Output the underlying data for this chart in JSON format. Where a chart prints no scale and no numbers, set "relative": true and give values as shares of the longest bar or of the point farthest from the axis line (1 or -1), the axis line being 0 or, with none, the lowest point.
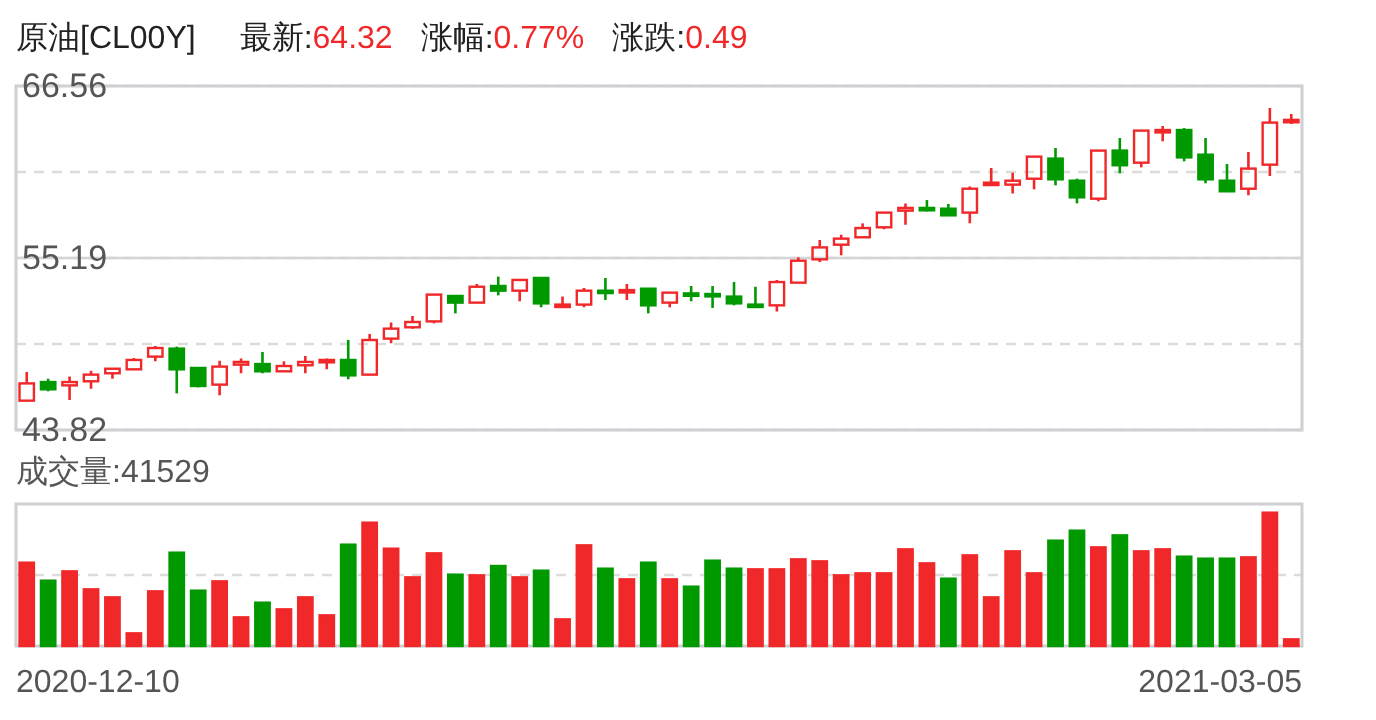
{
  "chart_data": [
    {
      "type": "candlestick",
      "title": "原油[CL00Y]",
      "annotations": [
        "最新:64.32",
        "涨幅:0.77%",
        "涨跌:0.49"
      ],
      "categories": [
        null,
        null,
        null,
        null,
        null,
        null,
        null,
        null,
        null,
        null,
        null,
        null,
        null,
        null,
        null,
        null,
        null,
        null,
        null,
        null,
        null,
        null,
        null,
        null,
        null,
        null,
        null,
        null,
        null,
        null,
        null,
        null,
        null,
        null,
        null,
        null,
        null,
        null,
        null,
        null,
        null,
        null,
        null,
        null,
        null,
        null,
        null,
        null,
        null,
        null,
        null,
        null,
        null,
        null,
        null,
        null,
        null,
        null,
        null,
        null
      ],
      "ohlc": [
        [
          45.76,
          47.65,
          45.76,
          46.9
        ],
        [
          46.99,
          47.21,
          46.38,
          46.51
        ],
        [
          46.77,
          47.35,
          45.8,
          46.99
        ],
        [
          47.04,
          47.74,
          46.55,
          47.48
        ],
        [
          47.57,
          47.87,
          47.21,
          47.87
        ],
        [
          47.83,
          48.58,
          47.83,
          48.45
        ],
        [
          48.67,
          49.37,
          48.36,
          49.24
        ],
        [
          49.2,
          49.33,
          46.24,
          47.83
        ],
        [
          47.92,
          47.92,
          46.64,
          46.73
        ],
        [
          46.82,
          48.4,
          46.11,
          48.01
        ],
        [
          48.14,
          48.54,
          47.57,
          48.32
        ],
        [
          48.18,
          48.98,
          47.57,
          47.7
        ],
        [
          47.7,
          48.36,
          47.7,
          48.05
        ],
        [
          48.1,
          48.71,
          47.57,
          48.32
        ],
        [
          48.4,
          48.54,
          47.83,
          48.45
        ],
        [
          48.45,
          49.77,
          47.17,
          47.43
        ],
        [
          47.48,
          50.17,
          47.48,
          49.77
        ],
        [
          49.86,
          50.92,
          49.55,
          50.52
        ],
        [
          50.61,
          51.36,
          50.52,
          50.96
        ],
        [
          51.0,
          52.77,
          50.87,
          52.77
        ],
        [
          52.68,
          52.68,
          51.53,
          52.24
        ],
        [
          52.24,
          53.47,
          52.24,
          53.29
        ],
        [
          53.34,
          53.96,
          52.72,
          53.03
        ],
        [
          53.03,
          53.74,
          52.33,
          53.74
        ],
        [
          53.87,
          53.87,
          51.93,
          52.19
        ],
        [
          52.02,
          52.64,
          51.93,
          52.11
        ],
        [
          52.11,
          53.21,
          51.93,
          53.03
        ],
        [
          53.03,
          53.87,
          52.41,
          52.94
        ],
        [
          52.99,
          53.47,
          52.41,
          53.07
        ],
        [
          53.16,
          53.16,
          51.53,
          52.06
        ],
        [
          52.24,
          52.9,
          51.93,
          52.9
        ],
        [
          52.85,
          53.34,
          52.33,
          52.77
        ],
        [
          52.81,
          53.34,
          51.89,
          52.72
        ],
        [
          52.64,
          53.6,
          52.06,
          52.19
        ],
        [
          52.11,
          53.29,
          52.06,
          52.06
        ],
        [
          52.06,
          53.74,
          51.66,
          53.6
        ],
        [
          53.56,
          55.23,
          53.56,
          55.01
        ],
        [
          55.1,
          56.38,
          54.93,
          55.89
        ],
        [
          56.07,
          56.73,
          55.37,
          56.47
        ],
        [
          56.56,
          57.48,
          56.56,
          57.17
        ],
        [
          57.22,
          58.19,
          57.09,
          58.19
        ],
        [
          58.32,
          58.8,
          57.39,
          58.5
        ],
        [
          58.5,
          59.02,
          58.27,
          58.41
        ],
        [
          58.45,
          58.76,
          58.01,
          58.01
        ],
        [
          58.19,
          59.91,
          57.48,
          59.77
        ],
        [
          60.08,
          61.14,
          59.95,
          60.17
        ],
        [
          60.04,
          60.83,
          59.46,
          60.3
        ],
        [
          60.43,
          61.89,
          59.73,
          61.89
        ],
        [
          61.76,
          62.46,
          59.99,
          60.39
        ],
        [
          60.3,
          60.43,
          58.8,
          59.2
        ],
        [
          59.11,
          62.29,
          58.94,
          62.29
        ],
        [
          62.29,
          63.12,
          60.79,
          61.32
        ],
        [
          61.49,
          63.61,
          61.18,
          63.61
        ],
        [
          63.56,
          63.92,
          62.9,
          63.65
        ],
        [
          63.65,
          63.78,
          61.58,
          61.84
        ],
        [
          62.02,
          63.12,
          60.13,
          60.39
        ],
        [
          60.3,
          61.4,
          59.6,
          59.6
        ],
        [
          59.77,
          62.2,
          59.33,
          61.1
        ],
        [
          61.36,
          65.11,
          60.61,
          64.14
        ],
        [
          64.28,
          64.71,
          64.05,
          64.32
        ]
      ],
      "colors": [
        "#f0282a",
        "#009900",
        "#f0282a",
        "#f0282a",
        "#f0282a",
        "#f0282a",
        "#f0282a",
        "#009900",
        "#009900",
        "#f0282a",
        "#f0282a",
        "#009900",
        "#f0282a",
        "#f0282a",
        "#f0282a",
        "#009900",
        "#f0282a",
        "#f0282a",
        "#f0282a",
        "#f0282a",
        "#009900",
        "#f0282a",
        "#009900",
        "#f0282a",
        "#009900",
        "#f0282a",
        "#f0282a",
        "#009900",
        "#f0282a",
        "#009900",
        "#f0282a",
        "#009900",
        "#009900",
        "#009900",
        "#009900",
        "#f0282a",
        "#f0282a",
        "#f0282a",
        "#f0282a",
        "#f0282a",
        "#f0282a",
        "#f0282a",
        "#009900",
        "#009900",
        "#f0282a",
        "#f0282a",
        "#f0282a",
        "#f0282a",
        "#009900",
        "#009900",
        "#f0282a",
        "#009900",
        "#f0282a",
        "#f0282a",
        "#009900",
        "#009900",
        "#009900",
        "#f0282a",
        "#f0282a",
        "#f0282a"
      ],
      "ylim": [
        43.82,
        66.56
      ],
      "yticks": [
        43.82,
        {
          "value": 49.505,
          "label": null
        },
        55.19,
        {
          "value": 60.875,
          "label": null
        },
        66.56
      ],
      "grid": "y",
      "tick_labels": "y",
      "ref_lines": [
        {
          "axis": "y",
          "value": 55.19,
          "color": "#d4d4d8",
          "line_style": "solid"
        }
      ]
    },
    {
      "type": "bar",
      "title": "成交量:41529",
      "relative": true,
      "annotations": [
        "2020-12-10",
        "2021-03-05"
      ],
      "categories": [
        null,
        null,
        null,
        null,
        null,
        null,
        null,
        null,
        null,
        null,
        null,
        null,
        null,
        null,
        null,
        null,
        null,
        null,
        null,
        null,
        null,
        null,
        null,
        null,
        null,
        null,
        null,
        null,
        null,
        null,
        null,
        null,
        null,
        null,
        null,
        null,
        null,
        null,
        null,
        null,
        null,
        null,
        null,
        null,
        null,
        null,
        null,
        null,
        null,
        null,
        null,
        null,
        null,
        null,
        null,
        null,
        null,
        null,
        null,
        null
      ],
      "values": [
        0.625,
        0.49,
        0.56,
        0.425,
        0.365,
        0.095,
        0.41,
        0.7,
        0.415,
        0.485,
        0.215,
        0.325,
        0.275,
        0.365,
        0.23,
        0.76,
        0.925,
        0.73,
        0.515,
        0.695,
        0.535,
        0.53,
        0.6,
        0.515,
        0.565,
        0.2,
        0.755,
        0.58,
        0.5,
        0.625,
        0.5,
        0.445,
        0.64,
        0.58,
        0.575,
        0.575,
        0.65,
        0.635,
        0.53,
        0.545,
        0.545,
        0.725,
        0.62,
        0.505,
        0.68,
        0.365,
        0.71,
        0.545,
        0.79,
        0.865,
        0.74,
        0.83,
        0.71,
        0.725,
        0.67,
        0.655,
        0.655,
        0.665,
        1,
        0.05
      ],
      "colors": [
        "#f0282a",
        "#009900",
        "#f0282a",
        "#f0282a",
        "#f0282a",
        "#f0282a",
        "#f0282a",
        "#009900",
        "#009900",
        "#f0282a",
        "#f0282a",
        "#009900",
        "#f0282a",
        "#f0282a",
        "#f0282a",
        "#009900",
        "#f0282a",
        "#f0282a",
        "#f0282a",
        "#f0282a",
        "#009900",
        "#f0282a",
        "#009900",
        "#f0282a",
        "#009900",
        "#f0282a",
        "#f0282a",
        "#009900",
        "#f0282a",
        "#009900",
        "#f0282a",
        "#009900",
        "#009900",
        "#009900",
        "#f0282a",
        "#f0282a",
        "#f0282a",
        "#f0282a",
        "#f0282a",
        "#f0282a",
        "#f0282a",
        "#f0282a",
        "#f0282a",
        "#009900",
        "#f0282a",
        "#f0282a",
        "#f0282a",
        "#f0282a",
        "#009900",
        "#009900",
        "#f0282a",
        "#009900",
        "#f0282a",
        "#f0282a",
        "#009900",
        "#009900",
        "#009900",
        "#f0282a",
        "#f0282a",
        "#f0282a"
      ],
      "tick_labels": false,
      "ref_lines": [
        {
          "axis": "y",
          "value": 0.5325,
          "color": "#dcdcdc",
          "line_style": "dashed"
        }
      ]
    }
  ]
}
